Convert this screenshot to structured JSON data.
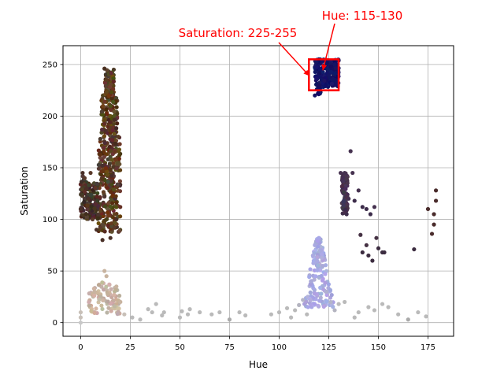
{
  "chart_data": {
    "type": "scatter",
    "title": "",
    "xlabel": "Hue",
    "ylabel": "Saturation",
    "xlim": [
      -8.9,
      187.9
    ],
    "ylim": [
      -13.2,
      268.2
    ],
    "xticks": [
      0,
      25,
      50,
      75,
      100,
      125,
      150,
      175
    ],
    "yticks": [
      0,
      50,
      100,
      150,
      200,
      250
    ],
    "grid": true,
    "legend": "none",
    "marker_color_note": "each point is colored with its own pixel color",
    "clusters": [
      {
        "id": "brown-main",
        "hue_range": [
          9,
          20
        ],
        "sat_range": [
          88,
          245
        ],
        "color": "#5a3c22"
      },
      {
        "id": "brown-left",
        "hue_range": [
          0,
          9
        ],
        "sat_range": [
          100,
          145
        ],
        "color": "#4a3228"
      },
      {
        "id": "tan-low",
        "hue_range": [
          3,
          22
        ],
        "sat_range": [
          8,
          50
        ],
        "color": "#c8b4a0"
      },
      {
        "id": "navy",
        "hue_range": [
          117,
          130
        ],
        "sat_range": [
          220,
          255
        ],
        "color": "#141464"
      },
      {
        "id": "purple-mid",
        "hue_range": [
          131,
          136
        ],
        "sat_range": [
          105,
          165
        ],
        "color": "#463250"
      },
      {
        "id": "lavender",
        "hue_range": [
          110,
          130
        ],
        "sat_range": [
          15,
          82
        ],
        "color": "#aaaae0"
      },
      {
        "id": "gray-floor",
        "hue_range": [
          0,
          175
        ],
        "sat_range": [
          0,
          20
        ],
        "color": "#b4b4b4"
      }
    ],
    "sample_points": [
      {
        "x": 0,
        "y": 110,
        "c": "#4a3028"
      },
      {
        "x": 1,
        "y": 145,
        "c": "#4a3028"
      },
      {
        "x": 2,
        "y": 140,
        "c": "#5a3a2a"
      },
      {
        "x": 3,
        "y": 130,
        "c": "#4a3028"
      },
      {
        "x": 5,
        "y": 145,
        "c": "#5a3a2a"
      },
      {
        "x": 4,
        "y": 120,
        "c": "#4a3028"
      },
      {
        "x": 6,
        "y": 100,
        "c": "#5a3a2a"
      },
      {
        "x": 8,
        "y": 90,
        "c": "#4a3028"
      },
      {
        "x": 10,
        "y": 92,
        "c": "#5a3a2a"
      },
      {
        "x": 11,
        "y": 80,
        "c": "#4a3028"
      },
      {
        "x": 12,
        "y": 246,
        "c": "#4a3020"
      },
      {
        "x": 13,
        "y": 235,
        "c": "#5a3c22"
      },
      {
        "x": 15,
        "y": 82,
        "c": "#4a3028"
      },
      {
        "x": 17,
        "y": 92,
        "c": "#5a3a2a"
      },
      {
        "x": 18,
        "y": 100,
        "c": "#4a3028"
      },
      {
        "x": 19,
        "y": 180,
        "c": "#5a3c22"
      },
      {
        "x": 0,
        "y": 10,
        "c": "#c8c0b8"
      },
      {
        "x": 0,
        "y": 0,
        "c": "#c8c8c8"
      },
      {
        "x": 0,
        "y": 5,
        "c": "#c8c0b8"
      },
      {
        "x": 7,
        "y": 30,
        "c": "#c8b4a0"
      },
      {
        "x": 12,
        "y": 50,
        "c": "#c8b4a0"
      },
      {
        "x": 13,
        "y": 45,
        "c": "#c8b4a0"
      },
      {
        "x": 18,
        "y": 35,
        "c": "#c8b4a0"
      },
      {
        "x": 20,
        "y": 20,
        "c": "#c8b4a0"
      },
      {
        "x": 22,
        "y": 8,
        "c": "#c8c0b8"
      },
      {
        "x": 26,
        "y": 5,
        "c": "#bababa"
      },
      {
        "x": 30,
        "y": 3,
        "c": "#bababa"
      },
      {
        "x": 34,
        "y": 13,
        "c": "#bababa"
      },
      {
        "x": 36,
        "y": 10,
        "c": "#bababa"
      },
      {
        "x": 38,
        "y": 18,
        "c": "#bababa"
      },
      {
        "x": 41,
        "y": 7,
        "c": "#bababa"
      },
      {
        "x": 42,
        "y": 10,
        "c": "#bababa"
      },
      {
        "x": 50,
        "y": 5,
        "c": "#bababa"
      },
      {
        "x": 51,
        "y": 11,
        "c": "#bababa"
      },
      {
        "x": 54,
        "y": 8,
        "c": "#bababa"
      },
      {
        "x": 55,
        "y": 13,
        "c": "#bababa"
      },
      {
        "x": 60,
        "y": 10,
        "c": "#bababa"
      },
      {
        "x": 66,
        "y": 8,
        "c": "#bababa"
      },
      {
        "x": 70,
        "y": 10,
        "c": "#bababa"
      },
      {
        "x": 75,
        "y": 3,
        "c": "#aaaaaa"
      },
      {
        "x": 80,
        "y": 10,
        "c": "#bababa"
      },
      {
        "x": 83,
        "y": 7,
        "c": "#bababa"
      },
      {
        "x": 96,
        "y": 8,
        "c": "#bababa"
      },
      {
        "x": 100,
        "y": 10,
        "c": "#bababa"
      },
      {
        "x": 104,
        "y": 14,
        "c": "#bababa"
      },
      {
        "x": 106,
        "y": 5,
        "c": "#bababa"
      },
      {
        "x": 108,
        "y": 12,
        "c": "#bababa"
      },
      {
        "x": 110,
        "y": 17,
        "c": "#b4b4c0"
      },
      {
        "x": 112,
        "y": 22,
        "c": "#b4b4c8"
      },
      {
        "x": 114,
        "y": 8,
        "c": "#bababa"
      },
      {
        "x": 116,
        "y": 40,
        "c": "#aaaad8"
      },
      {
        "x": 117,
        "y": 65,
        "c": "#aaaae0"
      },
      {
        "x": 118,
        "y": 75,
        "c": "#a8a8e0"
      },
      {
        "x": 119,
        "y": 60,
        "c": "#aaaae0"
      },
      {
        "x": 120,
        "y": 82,
        "c": "#a8a8e8"
      },
      {
        "x": 121,
        "y": 70,
        "c": "#aaaae0"
      },
      {
        "x": 122,
        "y": 55,
        "c": "#aaaad8"
      },
      {
        "x": 124,
        "y": 30,
        "c": "#b0b0d0"
      },
      {
        "x": 126,
        "y": 20,
        "c": "#b4b4c8"
      },
      {
        "x": 128,
        "y": 12,
        "c": "#b4b4c0"
      },
      {
        "x": 130,
        "y": 18,
        "c": "#bababa"
      },
      {
        "x": 133,
        "y": 20,
        "c": "#bababa"
      },
      {
        "x": 138,
        "y": 5,
        "c": "#bababa"
      },
      {
        "x": 140,
        "y": 10,
        "c": "#bababa"
      },
      {
        "x": 145,
        "y": 15,
        "c": "#bababa"
      },
      {
        "x": 148,
        "y": 12,
        "c": "#bababa"
      },
      {
        "x": 152,
        "y": 18,
        "c": "#bababa"
      },
      {
        "x": 155,
        "y": 15,
        "c": "#bababa"
      },
      {
        "x": 160,
        "y": 8,
        "c": "#bababa"
      },
      {
        "x": 165,
        "y": 3,
        "c": "#aaaaaa"
      },
      {
        "x": 170,
        "y": 10,
        "c": "#bababa"
      },
      {
        "x": 174,
        "y": 6,
        "c": "#bababa"
      },
      {
        "x": 118,
        "y": 220,
        "c": "#141464"
      },
      {
        "x": 119,
        "y": 226,
        "c": "#141464"
      },
      {
        "x": 120,
        "y": 255,
        "c": "#0a0a5a"
      },
      {
        "x": 123,
        "y": 248,
        "c": "#141464"
      },
      {
        "x": 125,
        "y": 240,
        "c": "#141464"
      },
      {
        "x": 127,
        "y": 236,
        "c": "#141464"
      },
      {
        "x": 129,
        "y": 232,
        "c": "#141464"
      },
      {
        "x": 128,
        "y": 250,
        "c": "#141464"
      },
      {
        "x": 131,
        "y": 145,
        "c": "#463250"
      },
      {
        "x": 133,
        "y": 145,
        "c": "#463250"
      },
      {
        "x": 134,
        "y": 105,
        "c": "#3c2c4a"
      },
      {
        "x": 135,
        "y": 120,
        "c": "#463250"
      },
      {
        "x": 136,
        "y": 166,
        "c": "#463250"
      },
      {
        "x": 137,
        "y": 145,
        "c": "#463250"
      },
      {
        "x": 138,
        "y": 118,
        "c": "#3c2c4a"
      },
      {
        "x": 140,
        "y": 128,
        "c": "#463250"
      },
      {
        "x": 142,
        "y": 112,
        "c": "#3c2c4a"
      },
      {
        "x": 144,
        "y": 110,
        "c": "#3c2c4a"
      },
      {
        "x": 146,
        "y": 105,
        "c": "#3c2c4a"
      },
      {
        "x": 148,
        "y": 112,
        "c": "#463250"
      },
      {
        "x": 141,
        "y": 85,
        "c": "#463244"
      },
      {
        "x": 142,
        "y": 68,
        "c": "#3c2c40"
      },
      {
        "x": 144,
        "y": 75,
        "c": "#463244"
      },
      {
        "x": 145,
        "y": 65,
        "c": "#3c2c40"
      },
      {
        "x": 147,
        "y": 60,
        "c": "#3c2c40"
      },
      {
        "x": 149,
        "y": 82,
        "c": "#463244"
      },
      {
        "x": 150,
        "y": 72,
        "c": "#3c2c40"
      },
      {
        "x": 152,
        "y": 68,
        "c": "#3c2c40"
      },
      {
        "x": 153,
        "y": 68,
        "c": "#3c2c40"
      },
      {
        "x": 168,
        "y": 71,
        "c": "#3c2c40"
      },
      {
        "x": 175,
        "y": 110,
        "c": "#4a2c2c"
      },
      {
        "x": 177,
        "y": 86,
        "c": "#4a2c2c"
      },
      {
        "x": 178,
        "y": 95,
        "c": "#4a2c2c"
      },
      {
        "x": 178,
        "y": 105,
        "c": "#4a2c2c"
      },
      {
        "x": 179,
        "y": 118,
        "c": "#4a2c2c"
      },
      {
        "x": 179,
        "y": 128,
        "c": "#4a2c2c"
      }
    ],
    "annotations": [
      {
        "id": "hue",
        "text": "Hue: 115-130",
        "color": "#ff0000",
        "anchor_x": 122,
        "anchor_y": 255
      },
      {
        "id": "saturation",
        "text": "Saturation: 225-255",
        "color": "#ff0000",
        "anchor_x": 116,
        "anchor_y": 242
      }
    ],
    "highlight_rect": {
      "x0": 115,
      "x1": 130,
      "y0": 225,
      "y1": 255,
      "color": "#ff0000"
    }
  }
}
